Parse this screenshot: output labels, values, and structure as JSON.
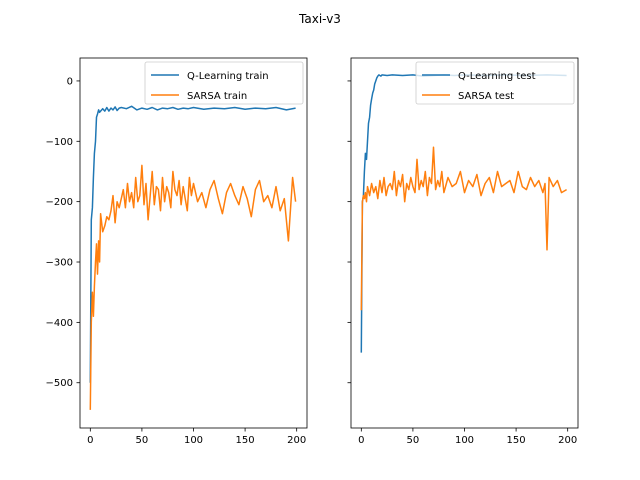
{
  "chart_data": [
    {
      "type": "line",
      "title": "Taxi-v3",
      "xlim": [
        -10,
        210
      ],
      "ylim": [
        -575,
        38
      ],
      "xticks": [
        0,
        50,
        100,
        150,
        200
      ],
      "yticks": [
        0,
        -100,
        -200,
        -300,
        -400,
        -500
      ],
      "ytick_labels": [
        "0",
        "−100",
        "−200",
        "−300",
        "−400",
        "−500"
      ],
      "legend_position": "top-right",
      "series": [
        {
          "name": "Q-Learning train",
          "color": "#1f77b4",
          "x": [
            0,
            1,
            2,
            3,
            4,
            5,
            6,
            7,
            8,
            9,
            10,
            12,
            14,
            16,
            18,
            20,
            22,
            24,
            26,
            28,
            30,
            35,
            40,
            45,
            50,
            55,
            60,
            65,
            70,
            75,
            80,
            85,
            90,
            95,
            100,
            110,
            120,
            130,
            140,
            150,
            160,
            170,
            180,
            190,
            199
          ],
          "values": [
            -500,
            -230,
            -210,
            -160,
            -120,
            -100,
            -60,
            -55,
            -48,
            -52,
            -50,
            -46,
            -50,
            -44,
            -50,
            -45,
            -48,
            -43,
            -49,
            -45,
            -44,
            -46,
            -42,
            -48,
            -45,
            -47,
            -44,
            -48,
            -45,
            -46,
            -44,
            -47,
            -45,
            -46,
            -44,
            -47,
            -45,
            -46,
            -44,
            -47,
            -45,
            -46,
            -44,
            -48,
            -45
          ]
        },
        {
          "name": "SARSA train",
          "color": "#ff7f0e",
          "x": [
            0,
            1,
            2,
            3,
            4,
            5,
            6,
            7,
            8,
            9,
            10,
            12,
            14,
            16,
            18,
            20,
            22,
            24,
            26,
            28,
            30,
            32,
            34,
            36,
            38,
            40,
            42,
            44,
            46,
            48,
            50,
            52,
            54,
            56,
            58,
            60,
            62,
            64,
            66,
            68,
            70,
            72,
            74,
            76,
            78,
            80,
            82,
            84,
            86,
            88,
            90,
            92,
            94,
            96,
            98,
            100,
            104,
            108,
            112,
            116,
            120,
            124,
            128,
            132,
            136,
            140,
            144,
            148,
            152,
            156,
            160,
            164,
            168,
            172,
            176,
            180,
            184,
            188,
            192,
            196,
            199
          ],
          "values": [
            -545,
            -400,
            -350,
            -390,
            -340,
            -300,
            -270,
            -320,
            -265,
            -300,
            -220,
            -250,
            -240,
            -225,
            -230,
            -215,
            -190,
            -235,
            -200,
            -210,
            -195,
            -180,
            -210,
            -170,
            -200,
            -185,
            -210,
            -160,
            -200,
            -190,
            -140,
            -205,
            -170,
            -230,
            -190,
            -150,
            -205,
            -175,
            -180,
            -215,
            -160,
            -200,
            -175,
            -185,
            -210,
            -150,
            -180,
            -190,
            -165,
            -205,
            -175,
            -195,
            -215,
            -160,
            -190,
            -170,
            -200,
            -185,
            -210,
            -180,
            -165,
            -195,
            -220,
            -185,
            -170,
            -190,
            -205,
            -175,
            -195,
            -225,
            -180,
            -165,
            -200,
            -190,
            -210,
            -175,
            -215,
            -195,
            -265,
            -160,
            -200
          ]
        }
      ]
    },
    {
      "type": "line",
      "xlim": [
        -10,
        210
      ],
      "ylim": [
        -575,
        38
      ],
      "xticks": [
        0,
        50,
        100,
        150,
        200
      ],
      "legend_position": "top-right",
      "series": [
        {
          "name": "Q-Learning test",
          "color": "#1f77b4",
          "x": [
            0,
            1,
            2,
            3,
            4,
            5,
            6,
            7,
            8,
            9,
            10,
            11,
            12,
            13,
            14,
            15,
            16,
            17,
            18,
            19,
            20,
            25,
            30,
            40,
            50,
            60,
            70,
            80,
            90,
            100,
            120,
            140,
            160,
            180,
            199
          ],
          "values": [
            -450,
            -200,
            -190,
            -150,
            -120,
            -130,
            -100,
            -70,
            -60,
            -40,
            -30,
            -20,
            -15,
            -5,
            0,
            5,
            8,
            10,
            9,
            8,
            10,
            9,
            10,
            9,
            10,
            8,
            9,
            10,
            9,
            10,
            9,
            10,
            9,
            10,
            9
          ]
        },
        {
          "name": "SARSA test",
          "color": "#ff7f0e",
          "x": [
            0,
            1,
            2,
            3,
            4,
            5,
            6,
            8,
            10,
            12,
            14,
            16,
            18,
            20,
            22,
            24,
            26,
            28,
            30,
            32,
            34,
            36,
            38,
            40,
            42,
            44,
            46,
            48,
            50,
            52,
            54,
            56,
            58,
            60,
            62,
            64,
            66,
            68,
            70,
            72,
            74,
            76,
            78,
            80,
            84,
            88,
            92,
            96,
            100,
            104,
            108,
            112,
            116,
            120,
            124,
            128,
            132,
            136,
            140,
            144,
            148,
            152,
            156,
            160,
            164,
            168,
            172,
            176,
            178,
            180,
            182,
            186,
            190,
            194,
            199
          ],
          "values": [
            -380,
            -200,
            -190,
            -195,
            -185,
            -200,
            -175,
            -190,
            -170,
            -185,
            -175,
            -195,
            -165,
            -185,
            -160,
            -190,
            -175,
            -170,
            -180,
            -150,
            -190,
            -165,
            -175,
            -155,
            -200,
            -170,
            -180,
            -160,
            -175,
            -185,
            -130,
            -180,
            -165,
            -175,
            -150,
            -190,
            -160,
            -170,
            -110,
            -180,
            -165,
            -175,
            -150,
            -185,
            -160,
            -175,
            -170,
            -150,
            -185,
            -165,
            -175,
            -155,
            -190,
            -170,
            -160,
            -185,
            -150,
            -175,
            -170,
            -165,
            -185,
            -150,
            -175,
            -180,
            -160,
            -175,
            -165,
            -185,
            -170,
            -280,
            -160,
            -175,
            -165,
            -185,
            -180
          ]
        }
      ]
    }
  ]
}
